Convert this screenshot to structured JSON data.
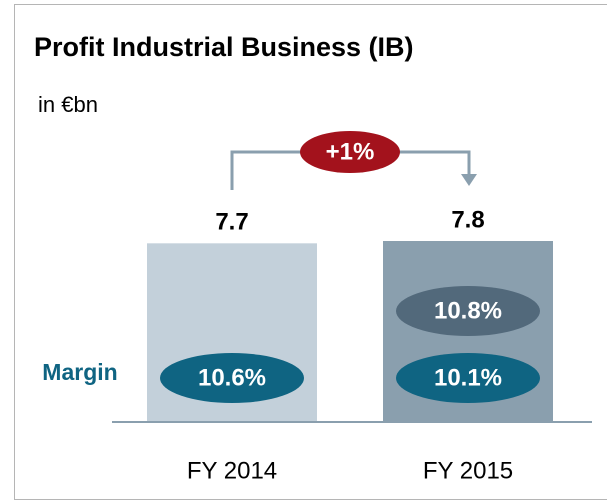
{
  "chart_data": {
    "type": "bar",
    "title": "Profit Industrial Business (IB)",
    "subtitle": "in €bn",
    "categories": [
      "FY 2014",
      "FY 2015"
    ],
    "values": [
      7.7,
      7.8
    ],
    "colors": [
      "#c3d0da",
      "#8a9fae"
    ],
    "change": {
      "value": 1,
      "label": "+1%",
      "color": "#a3121c"
    },
    "margin_label": "Margin",
    "margins": [
      {
        "values": [
          10.6,
          10.1
        ],
        "value_labels": [
          "10.6%",
          "10.1%"
        ],
        "color": "#0f6482"
      },
      {
        "values": [
          null,
          10.8
        ],
        "value_labels": [
          null,
          "10.8%"
        ],
        "color": "#52697b"
      }
    ]
  }
}
